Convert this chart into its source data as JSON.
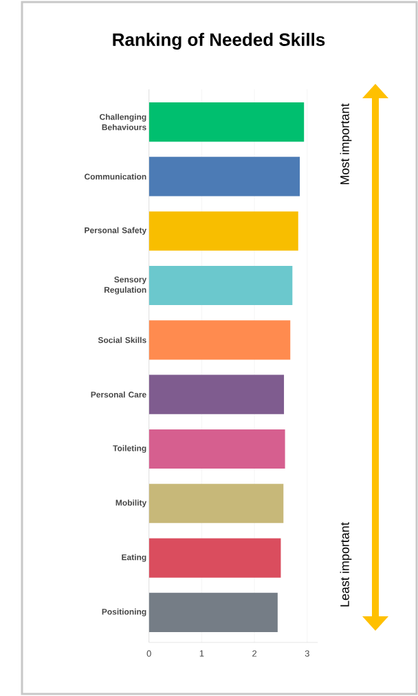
{
  "chart_data": {
    "type": "bar",
    "orientation": "horizontal",
    "title": "Ranking of Needed Skills",
    "categories": [
      "Challenging Behaviours",
      "Communication",
      "Personal Safety",
      "Sensory Regulation",
      "Social Skills",
      "Personal Care",
      "Toileting",
      "Mobility",
      "Eating",
      "Positioning"
    ],
    "values": [
      2.94,
      2.86,
      2.83,
      2.72,
      2.68,
      2.56,
      2.58,
      2.55,
      2.5,
      2.44
    ],
    "colors": [
      "#00bf6f",
      "#4c7bb5",
      "#f8be00",
      "#6bc8cd",
      "#ff8b4f",
      "#7f5c8f",
      "#d65f8f",
      "#c7b879",
      "#da4d5e",
      "#757d86"
    ],
    "xlim": [
      0,
      3.2
    ],
    "xticks": [
      0,
      1,
      2,
      3
    ],
    "grid": "x",
    "annotations": [
      "Most important",
      "Least important"
    ]
  }
}
